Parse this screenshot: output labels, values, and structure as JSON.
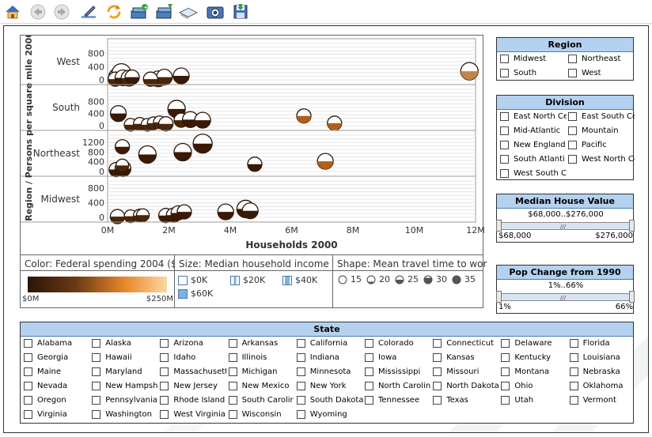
{
  "toolbar": {
    "icons": [
      "home-icon",
      "back-icon",
      "forward-icon",
      "edit-icon",
      "refresh-icon",
      "add-book-icon",
      "import-book-icon",
      "open-book-icon",
      "camera-icon",
      "save-icon"
    ]
  },
  "chart_data": {
    "type": "scatter",
    "xlabel": "Households 2000",
    "ylabel": "Region / Persons per square mile 2000",
    "x_ticks": [
      "0M",
      "2M",
      "4M",
      "6M",
      "8M",
      "10M",
      "12M"
    ],
    "xlim": [
      0,
      12000000
    ],
    "panels": [
      {
        "name": "West",
        "ticks": [
          "800",
          "400",
          "0"
        ],
        "ylim": [
          0,
          1100
        ],
        "points": [
          [
            300000,
            100,
            10,
            0.6
          ],
          [
            450000,
            200,
            12,
            0.4
          ],
          [
            250000,
            20,
            9,
            0.5
          ],
          [
            500000,
            60,
            10,
            0.6
          ],
          [
            700000,
            50,
            10,
            0.5
          ],
          [
            800000,
            80,
            9,
            0.6
          ],
          [
            1650000,
            30,
            10,
            0.5
          ],
          [
            1850000,
            80,
            10,
            0.5
          ],
          [
            2400000,
            120,
            10,
            0.55
          ],
          [
            1400000,
            20,
            9,
            0.5
          ],
          [
            11800000,
            260,
            11,
            0.45
          ]
        ]
      },
      {
        "name": "South",
        "ticks": [
          "800",
          "400",
          "0"
        ],
        "ylim": [
          0,
          1200
        ],
        "points": [
          [
            350000,
            400,
            10,
            0.6
          ],
          [
            750000,
            30,
            8,
            0.5
          ],
          [
            1050000,
            60,
            8,
            0.5
          ],
          [
            1300000,
            30,
            8,
            0.5
          ],
          [
            1500000,
            80,
            8,
            0.5
          ],
          [
            1700000,
            110,
            8,
            0.5
          ],
          [
            1900000,
            60,
            9,
            0.5
          ],
          [
            2250000,
            550,
            11,
            0.7
          ],
          [
            2400000,
            180,
            9,
            0.5
          ],
          [
            2700000,
            200,
            10,
            0.6
          ],
          [
            3100000,
            180,
            10,
            0.6
          ],
          [
            6400000,
            320,
            9,
            0.55
          ],
          [
            7400000,
            80,
            9,
            0.55
          ]
        ]
      },
      {
        "name": "Northeast",
        "ticks": [
          "1200",
          "800",
          "400",
          "0"
        ],
        "ylim": [
          0,
          1500
        ],
        "points": [
          [
            480000,
            1020,
            9,
            0.6
          ],
          [
            1300000,
            700,
            11,
            0.75
          ],
          [
            2450000,
            800,
            11,
            0.7
          ],
          [
            3100000,
            1150,
            12,
            0.75
          ],
          [
            280000,
            80,
            9,
            0.55
          ],
          [
            500000,
            120,
            10,
            0.55
          ],
          [
            480000,
            250,
            8,
            0.5
          ],
          [
            4800000,
            300,
            9,
            0.55
          ],
          [
            7100000,
            420,
            10,
            0.6
          ]
        ]
      },
      {
        "name": "Midwest",
        "ticks": [
          "800",
          "400",
          "0"
        ],
        "ylim": [
          0,
          1000
        ],
        "points": [
          [
            320000,
            20,
            9,
            0.5
          ],
          [
            750000,
            30,
            8,
            0.5
          ],
          [
            1050000,
            50,
            8,
            0.5
          ],
          [
            1150000,
            60,
            8,
            0.5
          ],
          [
            1900000,
            50,
            9,
            0.6
          ],
          [
            2150000,
            60,
            9,
            0.6
          ],
          [
            2300000,
            120,
            9,
            0.6
          ],
          [
            2500000,
            150,
            9,
            0.6
          ],
          [
            3850000,
            150,
            10,
            0.65
          ],
          [
            4500000,
            230,
            11,
            0.6
          ],
          [
            4650000,
            180,
            10,
            0.6
          ]
        ]
      }
    ],
    "legend_color": {
      "title": "Color: Federal spending 2004 ($...",
      "min_label": "$0M",
      "max_label": "$250M"
    },
    "legend_size": {
      "title": "Size: Median household income 2...",
      "items": [
        "$0K",
        "$20K",
        "$40K",
        "$60K"
      ]
    },
    "legend_shape": {
      "title": "Shape: Mean travel time to work ...",
      "items": [
        "15",
        "20",
        "25",
        "30",
        "35"
      ]
    }
  },
  "region": {
    "title": "Region",
    "items": [
      "Midwest",
      "Northeast",
      "South",
      "West"
    ]
  },
  "division": {
    "title": "Division",
    "items": [
      "East North Ce",
      "East South Ce",
      "Mid-Atlantic",
      "Mountain",
      "New England",
      "Pacific",
      "South Atlanti",
      "West North Ce",
      "West South C"
    ]
  },
  "house_value": {
    "title": "Median House Value",
    "value": "$68,000..$276,000",
    "min": "$68,000",
    "max": "$276,000",
    "low_frac": 0,
    "high_frac": 1
  },
  "pop_change": {
    "title": "Pop Change from 1990",
    "value": "1%..66%",
    "min": "1%",
    "max": "66%",
    "low_frac": 0,
    "high_frac": 1
  },
  "state": {
    "title": "State",
    "items": [
      "Alabama",
      "Alaska",
      "Arizona",
      "Arkansas",
      "California",
      "Colorado",
      "Connecticut",
      "Delaware",
      "Florida",
      "Georgia",
      "Hawaii",
      "Idaho",
      "Illinois",
      "Indiana",
      "Iowa",
      "Kansas",
      "Kentucky",
      "Louisiana",
      "Maine",
      "Maryland",
      "Massachusett",
      "Michigan",
      "Minnesota",
      "Mississippi",
      "Missouri",
      "Montana",
      "Nebraska",
      "Nevada",
      "New Hampshi",
      "New Jersey",
      "New Mexico",
      "New York",
      "North Carolin",
      "North Dakota",
      "Ohio",
      "Oklahoma",
      "Oregon",
      "Pennsylvania",
      "Rhode Island",
      "South Carolir",
      "South Dakota",
      "Tennessee",
      "Texas",
      "Utah",
      "Vermont",
      "Virginia",
      "Washington",
      "West Virginia",
      "Wisconsin",
      "Wyoming"
    ]
  }
}
